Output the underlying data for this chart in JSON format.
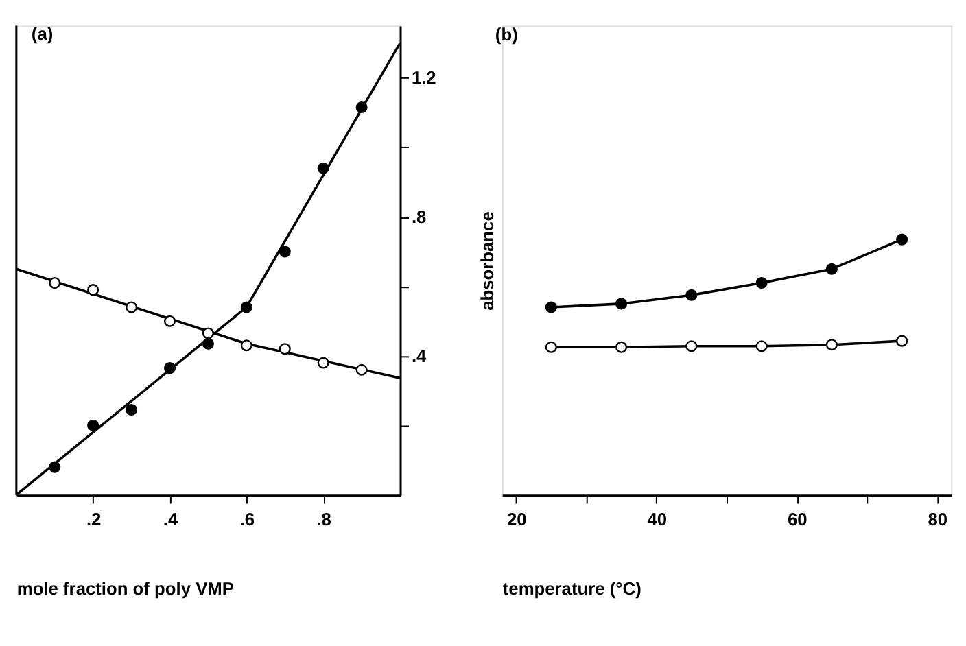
{
  "chart_data": [
    {
      "type": "scatter",
      "title": "(a)",
      "xlabel": "mole fraction of poly VMP",
      "xlim": [
        0,
        1
      ],
      "xticks": [
        {
          "value": 0.2,
          "label": ".2"
        },
        {
          "value": 0.4,
          "label": ".4"
        },
        {
          "value": 0.6,
          "label": ".6"
        },
        {
          "value": 0.8,
          "label": ".8"
        }
      ],
      "ylim": [
        0,
        1.35
      ],
      "yticks": [
        {
          "value": 0.2,
          "label": null
        },
        {
          "value": 0.4,
          "label": ".4"
        },
        {
          "value": 0.6,
          "label": null
        },
        {
          "value": 0.8,
          "label": ".8"
        },
        {
          "value": 1.0,
          "label": null
        },
        {
          "value": 1.2,
          "label": "1.2"
        }
      ],
      "marker": "circle",
      "grid": false,
      "series": [
        {
          "type": "line",
          "color": "#000000",
          "marker": "none",
          "x": [
            0,
            0.6,
            1
          ],
          "values": [
            0.65,
            0.435,
            0.336
          ]
        },
        {
          "type": "line",
          "color": "#000000",
          "marker": "none",
          "x": [
            0,
            0.6,
            1
          ],
          "values": [
            0,
            0.54,
            1.3
          ]
        },
        {
          "type": "scatter",
          "color": "#ffffff",
          "x": [
            0.1,
            0.2,
            0.3,
            0.4,
            0.5,
            0.6,
            0.7,
            0.8,
            0.9
          ],
          "values": [
            0.61,
            0.59,
            0.54,
            0.5,
            0.465,
            0.43,
            0.42,
            0.38,
            0.36
          ]
        },
        {
          "type": "scatter",
          "color": "#000000",
          "x": [
            0.1,
            0.2,
            0.3,
            0.4,
            0.5,
            0.6,
            0.7,
            0.8,
            0.9
          ],
          "values": [
            0.08,
            0.2,
            0.245,
            0.365,
            0.435,
            0.54,
            0.7,
            0.94,
            1.115
          ]
        }
      ]
    },
    {
      "type": "line",
      "title": "(b)",
      "xlabel": "temperature (°C)",
      "ylabel": "absorbance",
      "xlim": [
        18,
        82
      ],
      "xticks": [
        20,
        {
          "value": 30,
          "label": null
        },
        40,
        {
          "value": 50,
          "label": null
        },
        60,
        {
          "value": 70,
          "label": null
        },
        80
      ],
      "ylim": [
        0,
        1.35
      ],
      "tick_labels": "x",
      "marker": "circle",
      "grid": false,
      "series": [
        {
          "color": "#000000",
          "x": [
            25,
            35,
            45,
            55,
            65,
            75
          ],
          "values": [
            0.54,
            0.55,
            0.575,
            0.61,
            0.65,
            0.735
          ]
        },
        {
          "color": "#ffffff",
          "x": [
            25,
            35,
            45,
            55,
            65,
            75
          ],
          "values": [
            0.425,
            0.425,
            0.428,
            0.428,
            0.432,
            0.443
          ]
        }
      ]
    }
  ]
}
